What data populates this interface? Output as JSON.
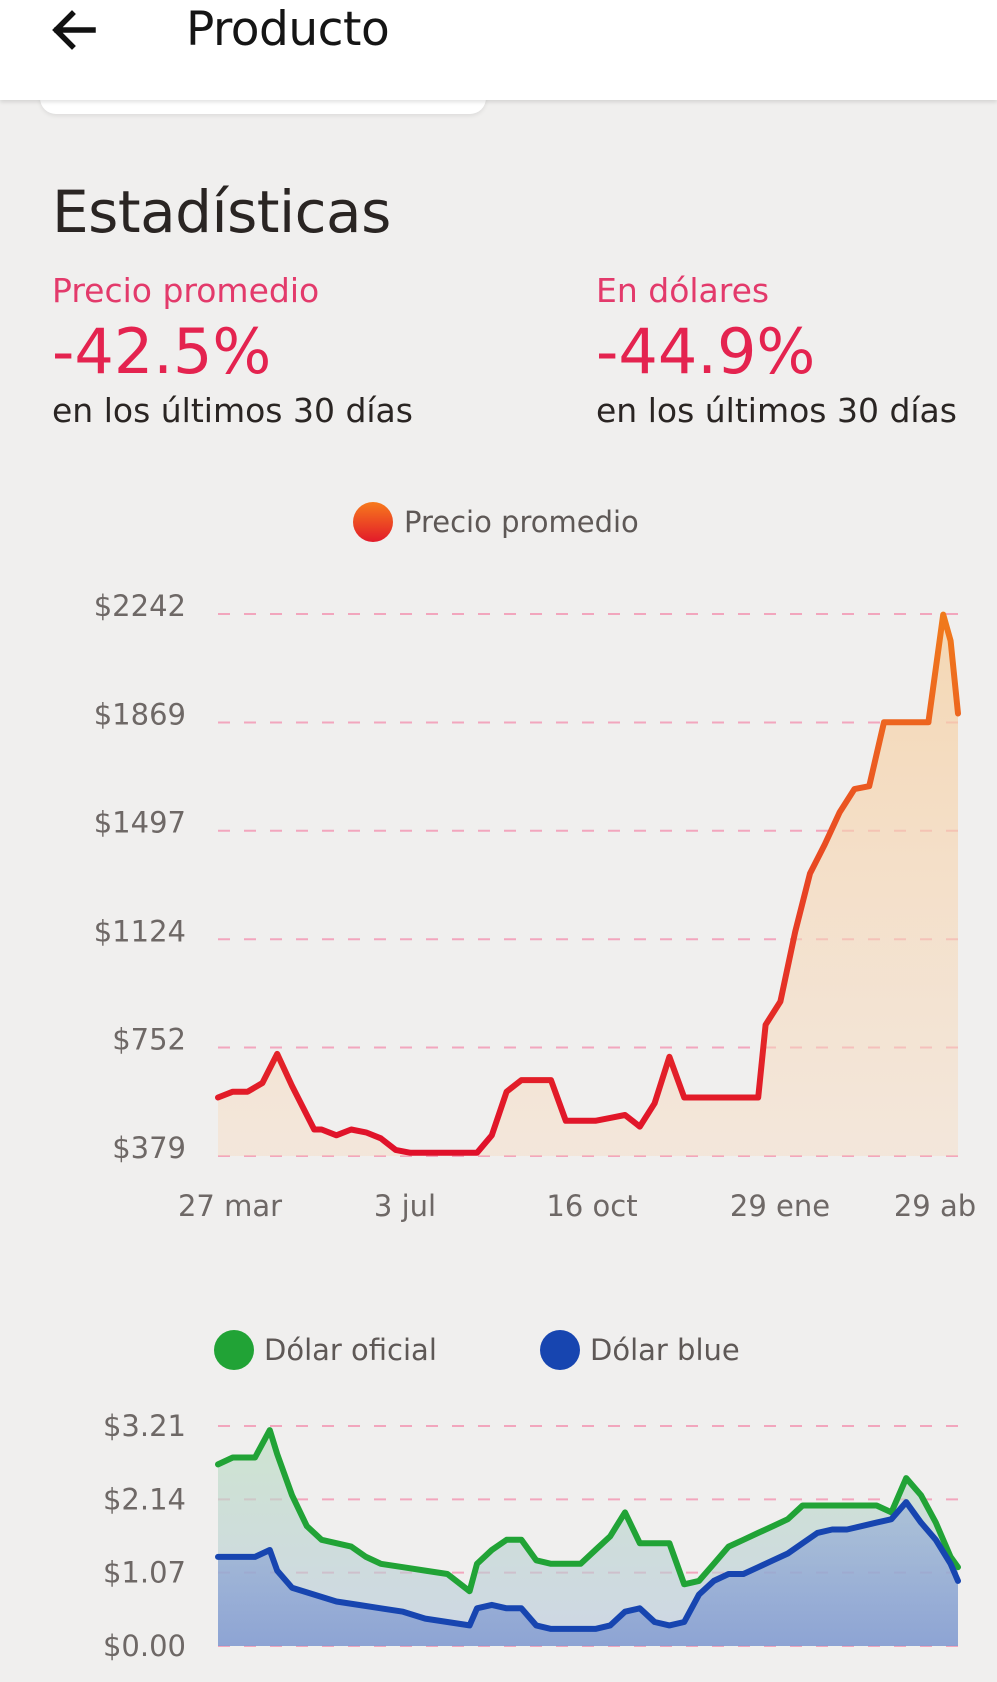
{
  "appbar": {
    "back_icon": "arrow-left-icon",
    "title": "Producto"
  },
  "stats": {
    "title": "Estadísticas",
    "items": [
      {
        "label": "Precio promedio",
        "value": "-42.5%",
        "sub": "en los últimos 30 días"
      },
      {
        "label": "En dólares",
        "value": "-44.9%",
        "sub": "en los últimos 30 días"
      }
    ]
  },
  "colors": {
    "accent_pink": "#e33a6b",
    "negative_red": "#e4234f",
    "price_line_start": "#e0102a",
    "price_line_end": "#f07a1c",
    "oficial": "#21a336",
    "blue": "#1745b0",
    "grid": "#f2a6bd"
  },
  "chart_data": [
    {
      "type": "line",
      "legend": [
        "Precio promedio"
      ],
      "yticks": [
        "$2242",
        "$1869",
        "$1497",
        "$1124",
        "$752",
        "$379"
      ],
      "ytick_values": [
        2242,
        1869,
        1497,
        1124,
        752,
        379
      ],
      "xticks": [
        "27 mar",
        "3 jul",
        "16 oct",
        "29 ene",
        "29 ab"
      ],
      "ylim": [
        379,
        2242
      ],
      "grid": true,
      "series": [
        {
          "name": "Precio promedio",
          "x": [
            0,
            2,
            4,
            6,
            8,
            10,
            12,
            13,
            14,
            16,
            18,
            20,
            22,
            24,
            26,
            28,
            29,
            31,
            33,
            35,
            37,
            39,
            41,
            43,
            45,
            47,
            49,
            51,
            53,
            55,
            57,
            59,
            61,
            63,
            65,
            67,
            69,
            71,
            73,
            74,
            76,
            78,
            80,
            82,
            84,
            86,
            88,
            90,
            92,
            94,
            96,
            98,
            99,
            100
          ],
          "values": [
            580,
            600,
            600,
            630,
            730,
            620,
            520,
            470,
            470,
            450,
            470,
            460,
            440,
            400,
            390,
            390,
            390,
            390,
            390,
            390,
            450,
            600,
            640,
            640,
            640,
            500,
            500,
            500,
            510,
            520,
            480,
            560,
            720,
            580,
            580,
            580,
            580,
            580,
            580,
            830,
            910,
            1150,
            1350,
            1450,
            1560,
            1640,
            1650,
            1870,
            1870,
            1870,
            1870,
            2240,
            2150,
            1900
          ]
        }
      ]
    },
    {
      "type": "area",
      "legend": [
        "Dólar oficial",
        "Dólar blue"
      ],
      "yticks": [
        "$3.21",
        "$2.14",
        "$1.07",
        "$0.00"
      ],
      "ytick_values": [
        3.21,
        2.14,
        1.07,
        0.0
      ],
      "ylim": [
        0,
        3.21
      ],
      "grid": true,
      "series": [
        {
          "name": "Dólar oficial",
          "x": [
            0,
            2,
            5,
            7,
            8,
            10,
            12,
            14,
            16,
            18,
            20,
            22,
            25,
            28,
            31,
            34,
            35,
            37,
            39,
            41,
            43,
            45,
            47,
            49,
            51,
            53,
            55,
            57,
            59,
            61,
            63,
            65,
            67,
            69,
            71,
            73,
            75,
            77,
            79,
            81,
            83,
            85,
            87,
            89,
            91,
            93,
            95,
            97,
            99,
            100
          ],
          "values": [
            2.65,
            2.75,
            2.75,
            3.15,
            2.8,
            2.2,
            1.75,
            1.55,
            1.5,
            1.45,
            1.3,
            1.2,
            1.15,
            1.1,
            1.05,
            0.8,
            1.2,
            1.4,
            1.55,
            1.55,
            1.25,
            1.2,
            1.2,
            1.2,
            1.4,
            1.6,
            1.95,
            1.5,
            1.5,
            1.5,
            0.9,
            0.95,
            1.2,
            1.45,
            1.55,
            1.65,
            1.75,
            1.85,
            2.05,
            2.05,
            2.05,
            2.05,
            2.05,
            2.05,
            1.95,
            2.45,
            2.2,
            1.8,
            1.3,
            1.15
          ]
        },
        {
          "name": "Dólar blue",
          "x": [
            0,
            3,
            5,
            7,
            8,
            10,
            13,
            16,
            19,
            22,
            25,
            28,
            31,
            34,
            35,
            37,
            39,
            41,
            43,
            45,
            47,
            49,
            51,
            53,
            55,
            57,
            59,
            61,
            63,
            65,
            67,
            69,
            71,
            73,
            75,
            77,
            79,
            81,
            83,
            85,
            87,
            89,
            91,
            93,
            95,
            97,
            99,
            100
          ],
          "values": [
            1.3,
            1.3,
            1.3,
            1.4,
            1.1,
            0.85,
            0.75,
            0.65,
            0.6,
            0.55,
            0.5,
            0.4,
            0.35,
            0.3,
            0.55,
            0.6,
            0.55,
            0.55,
            0.3,
            0.25,
            0.25,
            0.25,
            0.25,
            0.3,
            0.5,
            0.55,
            0.35,
            0.3,
            0.35,
            0.75,
            0.95,
            1.05,
            1.05,
            1.15,
            1.25,
            1.35,
            1.5,
            1.65,
            1.7,
            1.7,
            1.75,
            1.8,
            1.85,
            2.1,
            1.8,
            1.55,
            1.2,
            0.95
          ]
        }
      ]
    }
  ]
}
